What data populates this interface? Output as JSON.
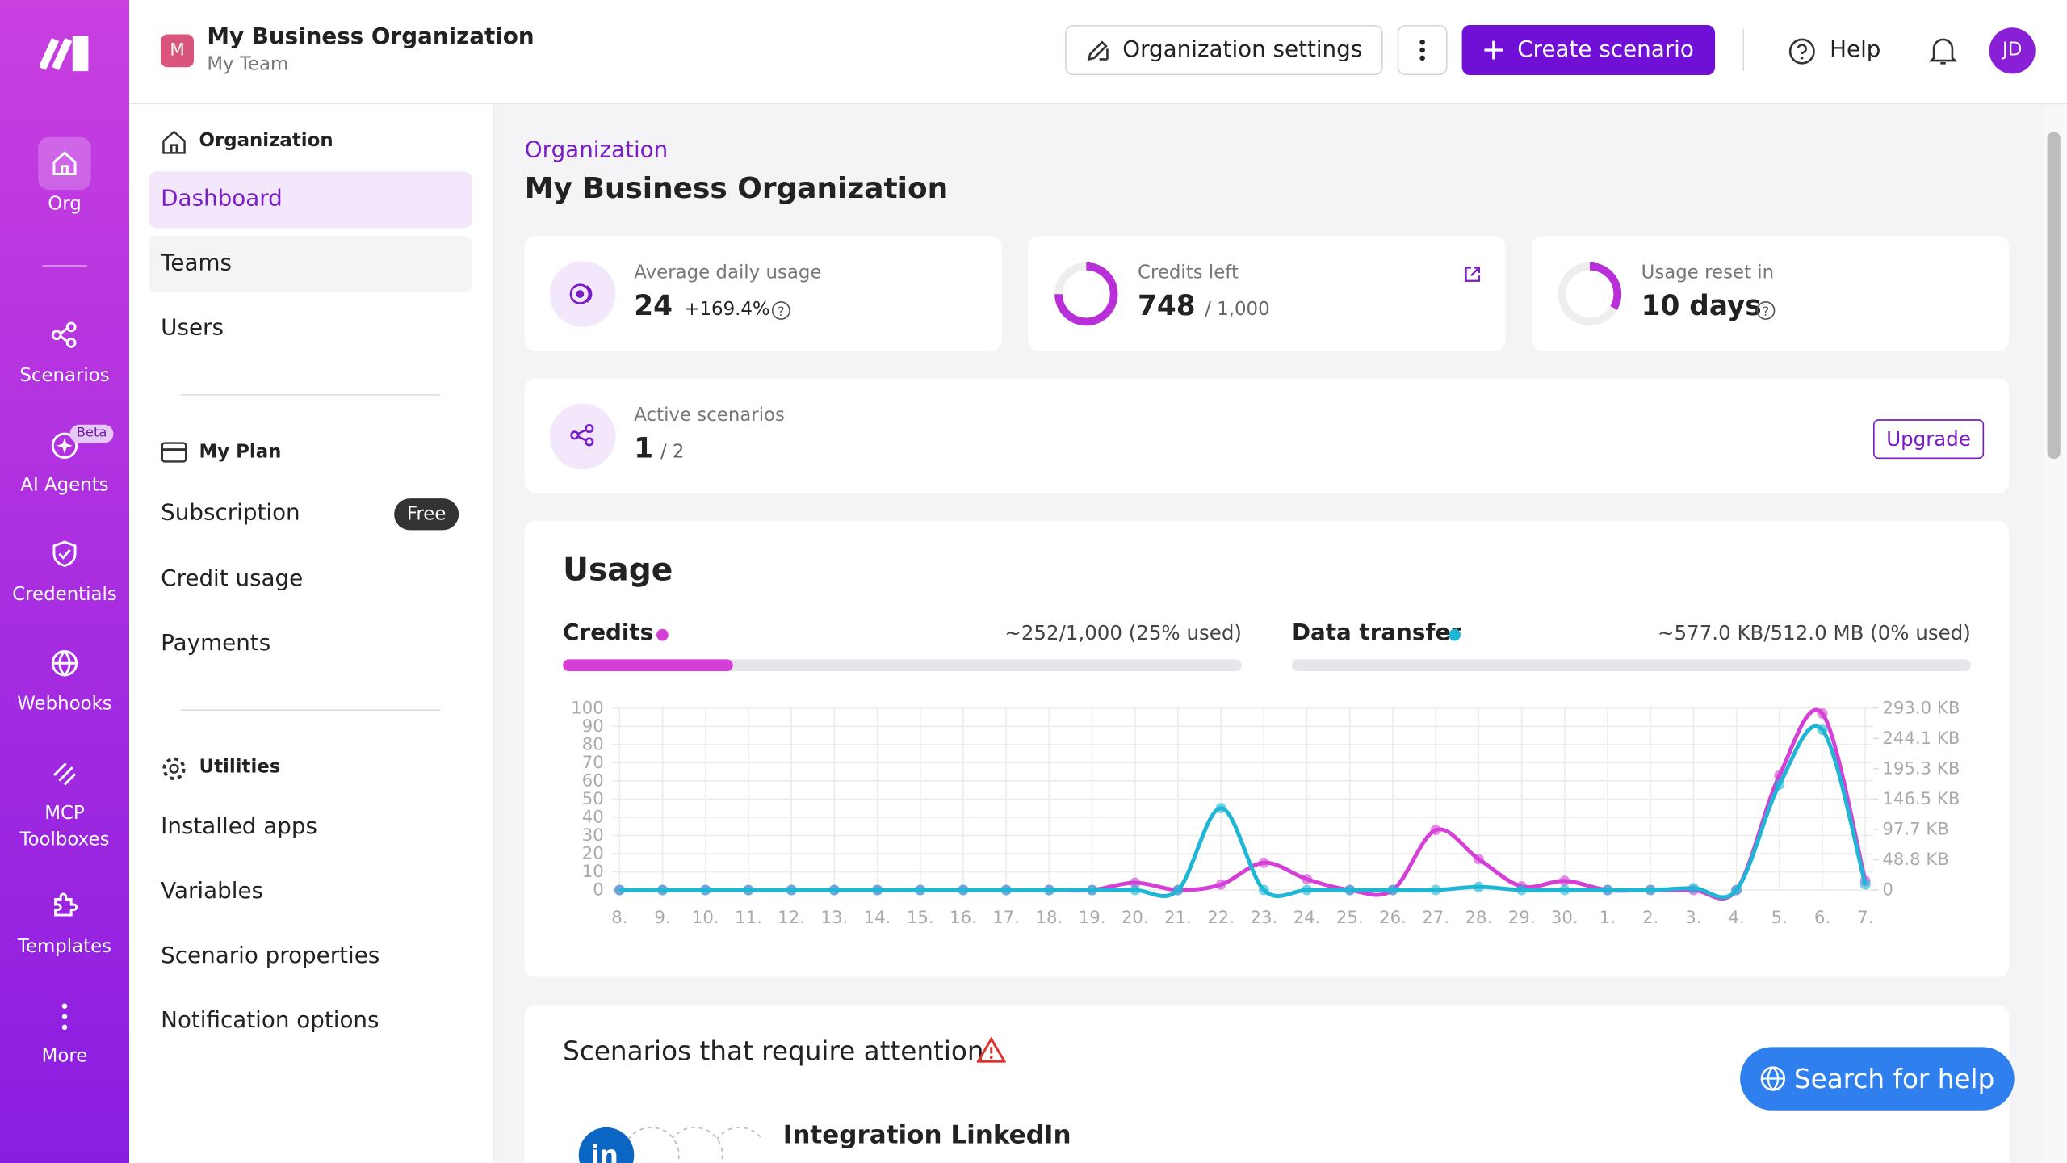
{
  "sidebar": {
    "items": [
      {
        "label": "Org"
      },
      {
        "label": "Scenarios"
      },
      {
        "label": "AI Agents",
        "badge": "Beta"
      },
      {
        "label": "Credentials"
      },
      {
        "label": "Webhooks"
      },
      {
        "label": "MCP Toolboxes"
      },
      {
        "label": "Templates"
      },
      {
        "label": "More"
      }
    ]
  },
  "header": {
    "org_initial": "M",
    "org_name": "My Business Organization",
    "team": "My Team",
    "settings_button": "Organization settings",
    "create_button": "Create scenario",
    "help": "Help",
    "avatar": "JD"
  },
  "nav": {
    "sections": [
      {
        "title": "Organization",
        "items": [
          "Dashboard",
          "Teams",
          "Users"
        ]
      },
      {
        "title": "My Plan",
        "items": [
          "Subscription",
          "Credit usage",
          "Payments"
        ],
        "badge": "Free"
      },
      {
        "title": "Utilities",
        "items": [
          "Installed apps",
          "Variables",
          "Scenario properties",
          "Notification options"
        ]
      }
    ]
  },
  "page": {
    "breadcrumb": "Organization",
    "title": "My Business Organization"
  },
  "stats": {
    "average_label": "Average daily usage",
    "average_value": "24",
    "average_change": "+169.4%",
    "credits_label": "Credits left",
    "credits_value": "748",
    "credits_total": "/ 1,000",
    "reset_label": "Usage reset in",
    "reset_value": "10 days",
    "active_label": "Active scenarios",
    "active_value": "1",
    "active_total": "/ 2",
    "upgrade": "Upgrade"
  },
  "usage": {
    "title": "Usage",
    "credits_summary": "~252/1,000 (25% used)",
    "transfer_summary": "~577.0 KB/512.0 MB (0% used)"
  },
  "chart_data": {
    "type": "line",
    "categories": [
      "8.",
      "9.",
      "10.",
      "11.",
      "12.",
      "13.",
      "14.",
      "15.",
      "16.",
      "17.",
      "18.",
      "19.",
      "20.",
      "21.",
      "22.",
      "23.",
      "24.",
      "25.",
      "26.",
      "27.",
      "28.",
      "29.",
      "30.",
      "1.",
      "2.",
      "3.",
      "4.",
      "5.",
      "6.",
      "7."
    ],
    "series": [
      {
        "name": "Credits",
        "color": "#d43fd6",
        "values": [
          0,
          0,
          0,
          0,
          0,
          0,
          0,
          0,
          0,
          0,
          0,
          0,
          4,
          0,
          3,
          15,
          6,
          0,
          0,
          33,
          17,
          2,
          5,
          0,
          0,
          0,
          0,
          63,
          97,
          5
        ]
      },
      {
        "name": "Data transfer",
        "color": "#1eb6d4",
        "axis": "y2",
        "values": [
          0,
          0,
          0,
          0,
          0,
          0,
          0,
          0,
          0,
          0,
          0,
          0,
          0,
          0,
          132,
          0,
          0,
          0,
          0,
          0,
          5,
          0,
          0,
          0,
          0,
          3,
          0,
          170,
          258,
          9
        ]
      }
    ],
    "ylim": [
      0,
      100
    ],
    "yticks": [
      0,
      10,
      20,
      30,
      40,
      50,
      60,
      70,
      80,
      90,
      100
    ],
    "y2lim": [
      0,
      293.0
    ],
    "y2ticks": [
      0,
      {
        "value": 48.8,
        "label": "48.8 KB"
      },
      {
        "value": 97.7,
        "label": "97.7 KB"
      },
      {
        "value": 146.5,
        "label": "146.5 KB"
      },
      {
        "value": 195.3,
        "label": "195.3 KB"
      },
      {
        "value": 244.1,
        "label": "244.1 KB"
      },
      {
        "value": 293.0,
        "label": "293.0 KB"
      }
    ],
    "grid": true
  },
  "attention": {
    "title": "Scenarios that require attention",
    "scenario": "Integration LinkedIn",
    "app_icon": "in",
    "search_help": "Search for help"
  }
}
